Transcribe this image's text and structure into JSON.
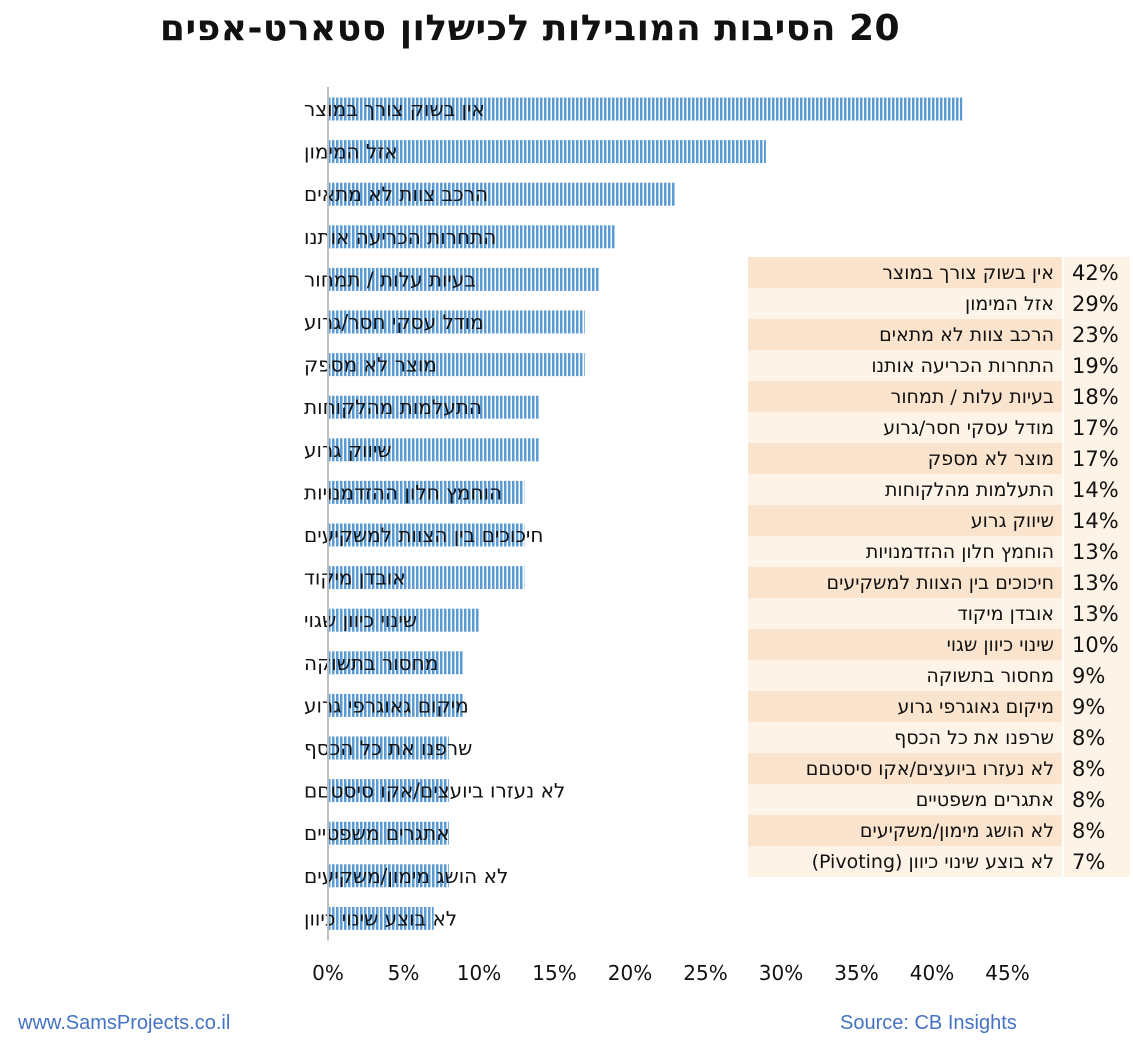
{
  "title": "20 הסיבות המובילות לכישלון סטארט-אפים",
  "footer": {
    "website": "www.SamsProjects.co.il",
    "source": "Source: CB Insights"
  },
  "colors": {
    "bar": "#5b9bd5",
    "bar_stripe": "#ffffff",
    "axis": "#bfbfbf",
    "legend_odd": "#fbe4cd",
    "legend_even": "#fdf3e7",
    "footer_text": "#4472c4"
  },
  "chart_data": {
    "type": "bar",
    "orientation": "horizontal",
    "title": "20 הסיבות המובילות לכישלון סטארט-אפים",
    "categories": [
      "אין בשוק צורך במוצר",
      "אזל המימון",
      "הרכב צוות לא מתאים",
      "התחרות הכריעה אותנו",
      "בעיות עלות / תמחור",
      "מודל עסקי חסר/גרוע",
      "מוצר לא מספק",
      "התעלמות מהלקוחות",
      "שיווק גרוע",
      "הוחמץ חלון ההזדמנויות",
      "חיכוכים בין הצוות למשקיעים",
      "אובדן מיקוד",
      "שינוי כיוון שגוי",
      "מחסור בתשוקה",
      "מיקום גאוגרפי גרוע",
      "שרפנו את כל הכסף",
      "לא נעזרו ביועצים/אקו סיסטםם",
      "אתגרים משפטיים",
      "לא הושג מימון/משקיעים",
      "לא בוצע שינוי כיוון"
    ],
    "values": [
      42,
      29,
      23,
      19,
      18,
      17,
      17,
      14,
      14,
      13,
      13,
      13,
      10,
      9,
      9,
      8,
      8,
      8,
      8,
      7
    ],
    "x_ticks": [
      "0%",
      "5%",
      "10%",
      "15%",
      "20%",
      "25%",
      "30%",
      "35%",
      "40%",
      "45%"
    ],
    "xlim": [
      0,
      45
    ],
    "unit": "%",
    "grid": false
  },
  "legend_table": {
    "rows": [
      {
        "name": "אין בשוק צורך במוצר",
        "pct": "42%"
      },
      {
        "name": "אזל המימון",
        "pct": "29%"
      },
      {
        "name": "הרכב צוות לא מתאים",
        "pct": "23%"
      },
      {
        "name": "התחרות הכריעה אותנו",
        "pct": "19%"
      },
      {
        "name": "בעיות עלות / תמחור",
        "pct": "18%"
      },
      {
        "name": "מודל עסקי חסר/גרוע",
        "pct": "17%"
      },
      {
        "name": "מוצר לא מספק",
        "pct": "17%"
      },
      {
        "name": "התעלמות מהלקוחות",
        "pct": "14%"
      },
      {
        "name": "שיווק גרוע",
        "pct": "14%"
      },
      {
        "name": "הוחמץ חלון ההזדמנויות",
        "pct": "13%"
      },
      {
        "name": "חיכוכים בין הצוות למשקיעים",
        "pct": "13%"
      },
      {
        "name": "אובדן מיקוד",
        "pct": "13%"
      },
      {
        "name": "שינוי כיוון שגוי",
        "pct": "10%"
      },
      {
        "name": "מחסור בתשוקה",
        "pct": "9%"
      },
      {
        "name": "מיקום גאוגרפי גרוע",
        "pct": "9%"
      },
      {
        "name": "שרפנו את כל הכסף",
        "pct": "8%"
      },
      {
        "name": "לא נעזרו ביועצים/אקו סיסטםם",
        "pct": "8%"
      },
      {
        "name": "אתגרים משפטיים",
        "pct": "8%"
      },
      {
        "name": "לא הושג מימון/משקיעים",
        "pct": "8%"
      },
      {
        "name": "לא בוצע שינוי כיוון (Pivoting)",
        "pct": "7%"
      }
    ]
  }
}
